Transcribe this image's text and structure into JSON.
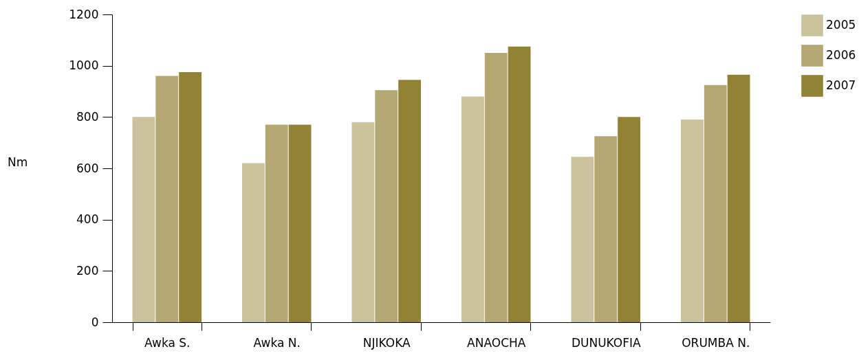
{
  "chart_data": {
    "type": "bar",
    "ylabel": "Nm",
    "categories": [
      "Awka S.",
      "Awka N.",
      "NJIKOKA",
      "ANAOCHA",
      "DUNUKOFIA",
      "ORUMBA N."
    ],
    "series": [
      {
        "name": "2005",
        "color": "#cbc29e",
        "values": [
          800,
          620,
          780,
          880,
          645,
          790
        ]
      },
      {
        "name": "2006",
        "color": "#b4a772",
        "values": [
          960,
          770,
          905,
          1050,
          725,
          925
        ]
      },
      {
        "name": "2007",
        "color": "#928235",
        "values": [
          975,
          770,
          945,
          1075,
          800,
          965
        ]
      }
    ],
    "ylim": [
      0,
      1200
    ],
    "yticks": [
      0,
      200,
      400,
      600,
      800,
      1000,
      1200
    ],
    "grid": false,
    "legend": "right"
  }
}
